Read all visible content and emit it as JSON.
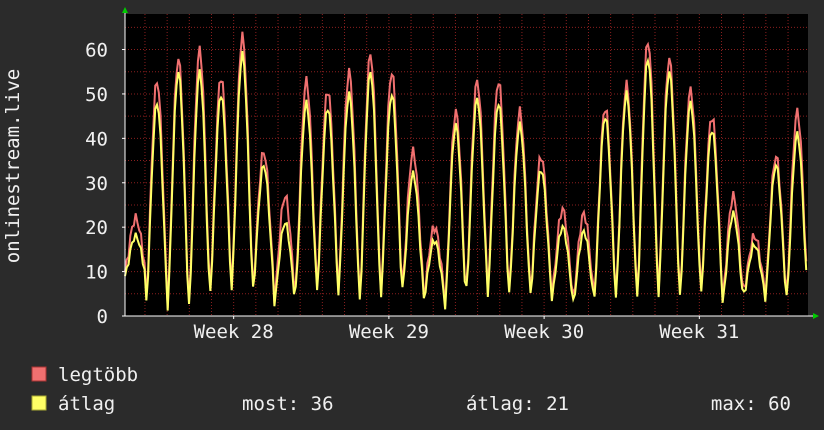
{
  "chart_data": {
    "type": "line",
    "ylabel": "onlinestream.live",
    "xlabel": "",
    "ylim": [
      0,
      68
    ],
    "yticks": [
      0,
      10,
      20,
      30,
      40,
      50,
      60
    ],
    "x_week_range": [
      27.3,
      31.7
    ],
    "xticks": [
      {
        "label": "Week 28",
        "x": 28
      },
      {
        "label": "Week 29",
        "x": 29
      },
      {
        "label": "Week 30",
        "x": 30
      },
      {
        "label": "Week 31",
        "x": 31
      }
    ],
    "daily_peaks": {
      "max": [
        22,
        53,
        58,
        60,
        54,
        63,
        37,
        27,
        53,
        51,
        55,
        59,
        55,
        37,
        20,
        46,
        53,
        53,
        46,
        36,
        24,
        23,
        47,
        52,
        62,
        58,
        51,
        45,
        27,
        18,
        36,
        46
      ],
      "avg": [
        18,
        48,
        55,
        55,
        50,
        59,
        34,
        21,
        48,
        47,
        50,
        55,
        50,
        32,
        17,
        43,
        49,
        48,
        43,
        33,
        20,
        19,
        45,
        50,
        58,
        55,
        48,
        42,
        23,
        16,
        34,
        41
      ],
      "min": [
        9,
        3,
        2,
        2,
        6,
        6,
        6,
        3,
        6,
        6,
        5,
        3,
        5,
        6,
        4,
        2,
        6,
        5,
        5,
        5,
        4,
        3,
        5,
        4,
        4,
        5,
        4,
        6,
        3,
        5,
        4,
        4
      ]
    },
    "grid": true,
    "series": [
      {
        "name": "legtöbb",
        "color": "#f07070"
      },
      {
        "name": "átlag",
        "color": "#ffff66"
      }
    ]
  },
  "legend": {
    "max_label": "legtöbb",
    "avg_label": "átlag",
    "now": "most: 36",
    "average": "átlag: 21",
    "maximum": "max: 60"
  },
  "colors": {
    "background": "#2b2b2b",
    "plot_bg": "#000000",
    "grid": "#8a1f1f",
    "axis": "#ffffff",
    "max_line": "#f07070",
    "avg_line": "#ffff66",
    "arrow": "#00cc00"
  }
}
